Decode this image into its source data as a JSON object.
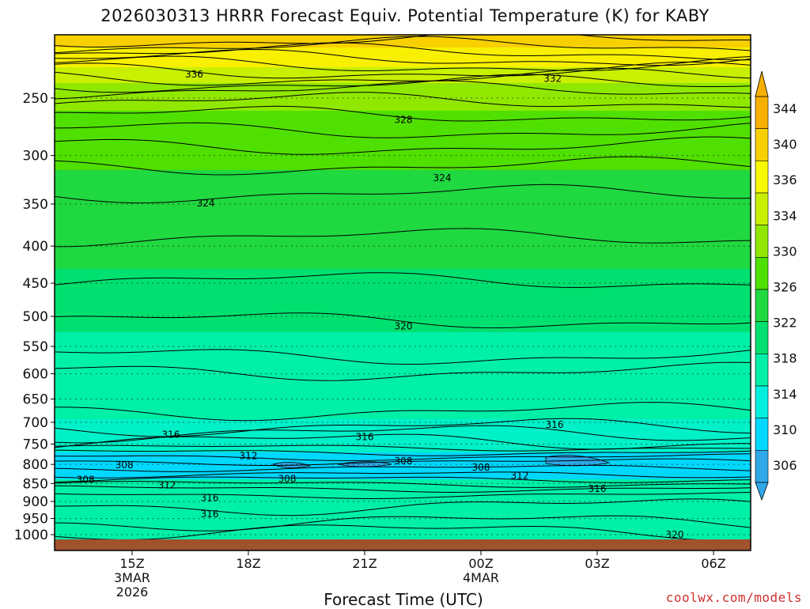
{
  "chart_data": {
    "type": "heatmap",
    "title": "2026030313 HRRR Forecast Equiv. Potential Temperature (K) for KABY",
    "xlabel": "Forecast Time (UTC)",
    "ylabel": "",
    "y_axis": {
      "label": "",
      "ticks": [
        250,
        300,
        350,
        400,
        450,
        500,
        550,
        600,
        650,
        700,
        750,
        800,
        850,
        900,
        950,
        1000
      ],
      "scale": "log",
      "range_hPa": [
        1030,
        200
      ],
      "reversed": true
    },
    "x_axis": {
      "ticks": [
        {
          "label": "15Z",
          "sub": [
            "3MAR",
            "2026"
          ]
        },
        {
          "label": "18Z",
          "sub": []
        },
        {
          "label": "21Z",
          "sub": []
        },
        {
          "label": "00Z",
          "sub": [
            "4MAR"
          ]
        },
        {
          "label": "03Z",
          "sub": []
        },
        {
          "label": "06Z",
          "sub": []
        }
      ]
    },
    "colorbar": {
      "labels": [
        "306",
        "310",
        "314",
        "318",
        "322",
        "326",
        "330",
        "334",
        "336",
        "340",
        "344"
      ],
      "colors": [
        "#2fa8e8",
        "#00d8ff",
        "#00f0e0",
        "#00f0a8",
        "#00e070",
        "#20d840",
        "#50e000",
        "#90e800",
        "#c8f000",
        "#f8f800",
        "#f8d000",
        "#f8b000"
      ]
    },
    "series": [
      {
        "name": "theta_e_at_250hPa",
        "values": [
          330,
          331,
          331,
          330,
          330,
          330,
          331
        ]
      },
      {
        "name": "theta_e_at_500hPa",
        "values": [
          321,
          320,
          320,
          320,
          320,
          321,
          322
        ]
      },
      {
        "name": "theta_e_at_800hPa",
        "values": [
          308,
          309,
          309,
          309,
          307,
          308,
          309
        ]
      },
      {
        "name": "theta_e_at_950hPa",
        "values": [
          317,
          316,
          317,
          318,
          318,
          319,
          319
        ]
      }
    ],
    "contour_labels": [
      {
        "text": "336",
        "time_h": 16.6,
        "p": 232
      },
      {
        "text": "332",
        "time_h": 1.85,
        "p": 235,
        "next_day": true
      },
      {
        "text": "328",
        "time_h": 22.0,
        "p": 268
      },
      {
        "text": "324",
        "time_h": 23.0,
        "p": 322
      },
      {
        "text": "324",
        "time_h": 16.9,
        "p": 349
      },
      {
        "text": "320",
        "time_h": 22.0,
        "p": 516
      },
      {
        "text": "316",
        "time_h": 16.0,
        "p": 728
      },
      {
        "text": "316",
        "time_h": 21.0,
        "p": 733
      },
      {
        "text": "316",
        "time_h": 1.9,
        "p": 705,
        "next_day": true
      },
      {
        "text": "312",
        "time_h": 18.0,
        "p": 779
      },
      {
        "text": "308",
        "time_h": 14.8,
        "p": 802
      },
      {
        "text": "308",
        "time_h": 22.0,
        "p": 792
      },
      {
        "text": "308",
        "time_h": 0.0,
        "p": 808,
        "next_day": true
      },
      {
        "text": "308",
        "time_h": 13.8,
        "p": 840
      },
      {
        "text": "308",
        "time_h": 19.0,
        "p": 838
      },
      {
        "text": "312",
        "time_h": 1.0,
        "p": 829,
        "next_day": true
      },
      {
        "text": "312",
        "time_h": 15.9,
        "p": 855
      },
      {
        "text": "316",
        "time_h": 3.0,
        "p": 864,
        "next_day": true
      },
      {
        "text": "316",
        "time_h": 17.0,
        "p": 890
      },
      {
        "text": "316",
        "time_h": 17.0,
        "p": 937
      },
      {
        "text": "320",
        "time_h": 5.0,
        "p": 1000,
        "next_day": true
      }
    ]
  },
  "credit": "coolwx.com/models"
}
